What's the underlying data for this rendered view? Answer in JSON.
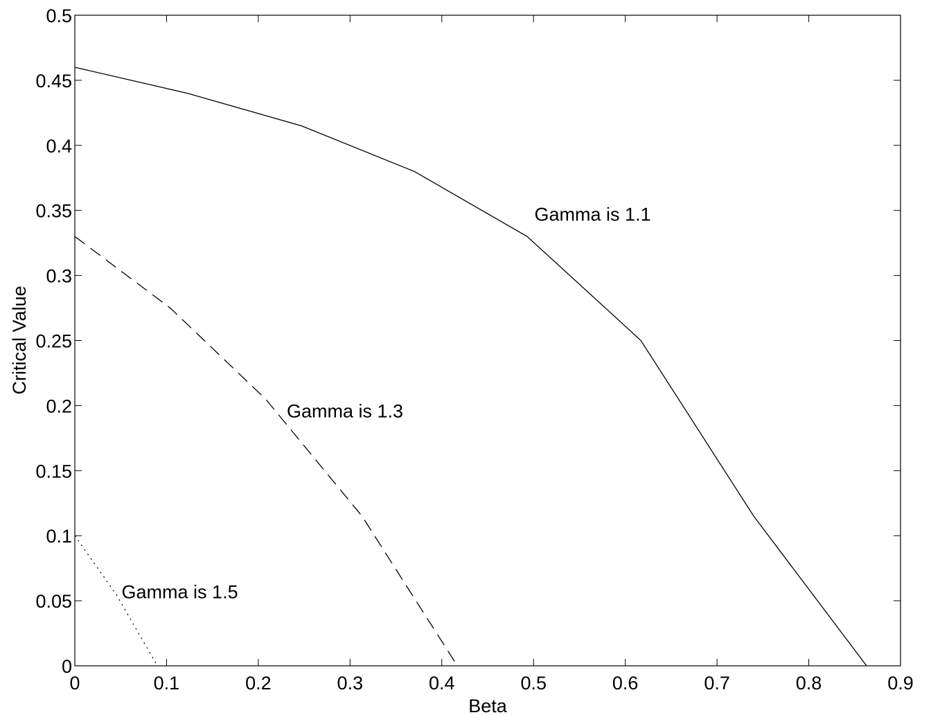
{
  "chart_data": {
    "type": "line",
    "title": "",
    "xlabel": "Beta",
    "ylabel": "Critical Value",
    "xlim": [
      0,
      0.9
    ],
    "ylim": [
      0,
      0.5
    ],
    "x_ticks": [
      0,
      0.1,
      0.2,
      0.3,
      0.4,
      0.5,
      0.6,
      0.7,
      0.8,
      0.9
    ],
    "x_tick_labels": [
      "0",
      "0.1",
      "0.2",
      "0.3",
      "0.4",
      "0.5",
      "0.6",
      "0.7",
      "0.8",
      "0.9"
    ],
    "y_ticks": [
      0,
      0.05,
      0.1,
      0.15,
      0.2,
      0.25,
      0.3,
      0.35,
      0.4,
      0.45,
      0.5
    ],
    "y_tick_labels": [
      "0",
      "0.05",
      "0.1",
      "0.15",
      "0.2",
      "0.25",
      "0.3",
      "0.35",
      "0.4",
      "0.45",
      "0.5"
    ],
    "grid": false,
    "legend": "none",
    "series": [
      {
        "style": "solid",
        "x": [
          0,
          0.123,
          0.247,
          0.37,
          0.493,
          0.617,
          0.74,
          0.863
        ],
        "y": [
          0.46,
          0.44,
          0.415,
          0.38,
          0.33,
          0.25,
          0.115,
          0.0
        ]
      },
      {
        "style": "dashed",
        "x": [
          0,
          0.104,
          0.208,
          0.313,
          0.417
        ],
        "y": [
          0.33,
          0.275,
          0.205,
          0.115,
          0.0
        ]
      },
      {
        "style": "dotted",
        "x": [
          0,
          0.045,
          0.09
        ],
        "y": [
          0.1,
          0.055,
          0.0
        ]
      }
    ],
    "annotations": [
      {
        "text": "Gamma is 1.1",
        "x": 0.501,
        "y": 0.342
      },
      {
        "text": "Gamma is 1.3",
        "x": 0.231,
        "y": 0.191
      },
      {
        "text": "Gamma is 1.5",
        "x": 0.051,
        "y": 0.052
      }
    ]
  }
}
